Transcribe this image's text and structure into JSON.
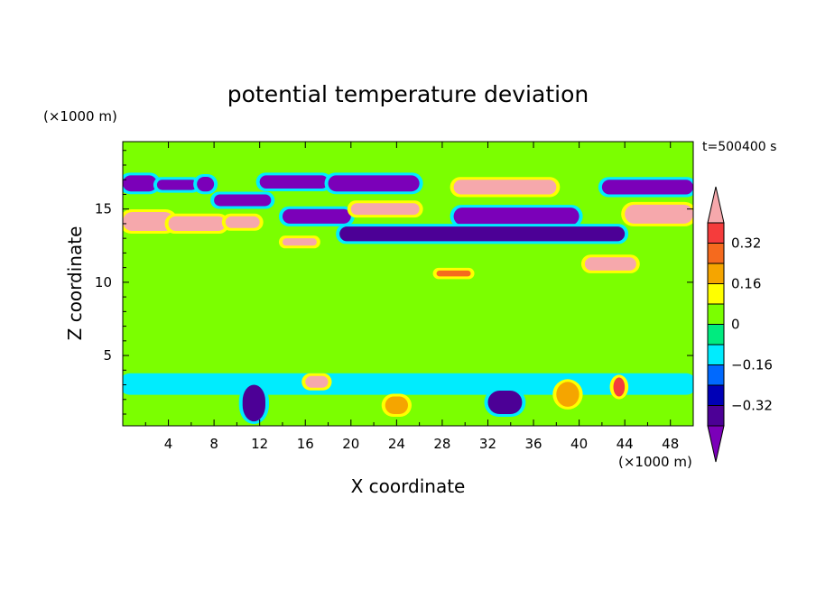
{
  "chart_data": {
    "type": "heatmap",
    "title": "potential temperature deviation",
    "xlabel": "X coordinate",
    "ylabel": "Z coordinate",
    "x_units": "(×1000 m)",
    "y_units": "(×1000 m)",
    "time_label": "t=500400 s",
    "xlim": [
      0,
      50
    ],
    "ylim": [
      0.2,
      19.6
    ],
    "x_ticks": [
      "4",
      "8",
      "12",
      "16",
      "20",
      "24",
      "28",
      "32",
      "36",
      "40",
      "44",
      "48"
    ],
    "y_ticks": [
      "5",
      "10",
      "15"
    ],
    "colorbar": {
      "labels": [
        "0.32",
        "0.16",
        "0",
        "−0.16",
        "−0.32"
      ],
      "levels": [
        0.4,
        0.32,
        0.24,
        0.16,
        0.08,
        0,
        -0.08,
        -0.16,
        -0.24,
        -0.32,
        -0.4
      ],
      "colors": [
        "#f6a8ac",
        "#f53c3c",
        "#f56a1e",
        "#f5a500",
        "#ffff00",
        "#7bff00",
        "#00eb7f",
        "#00ecfe",
        "#0069fe",
        "#0000b6",
        "#4c0096",
        "#7b00b9"
      ]
    },
    "background_color": "#7bff00",
    "features": [
      {
        "x": [
          0,
          3
        ],
        "z": [
          16.2,
          17.3
        ],
        "value": -0.45
      },
      {
        "x": [
          3,
          6.5
        ],
        "z": [
          16.3,
          17.0
        ],
        "value": -0.45
      },
      {
        "x": [
          6.5,
          8
        ],
        "z": [
          16.2,
          17.2
        ],
        "value": -0.45
      },
      {
        "x": [
          0,
          4.5
        ],
        "z": [
          13.5,
          14.8
        ],
        "value": 0.45
      },
      {
        "x": [
          4,
          9
        ],
        "z": [
          13.5,
          14.5
        ],
        "value": 0.45
      },
      {
        "x": [
          9,
          12
        ],
        "z": [
          13.7,
          14.5
        ],
        "value": 0.45
      },
      {
        "x": [
          8,
          13
        ],
        "z": [
          15.2,
          16.0
        ],
        "value": -0.45
      },
      {
        "x": [
          12,
          18
        ],
        "z": [
          16.4,
          17.3
        ],
        "value": -0.45
      },
      {
        "x": [
          14,
          20
        ],
        "z": [
          14.0,
          15.0
        ],
        "value": -0.45
      },
      {
        "x": [
          18,
          26
        ],
        "z": [
          16.2,
          17.3
        ],
        "value": -0.45
      },
      {
        "x": [
          20,
          26
        ],
        "z": [
          14.6,
          15.4
        ],
        "value": 0.45
      },
      {
        "x": [
          29,
          38
        ],
        "z": [
          16.0,
          17.0
        ],
        "value": 0.45
      },
      {
        "x": [
          29,
          40
        ],
        "z": [
          13.9,
          15.1
        ],
        "value": -0.45
      },
      {
        "x": [
          19,
          44
        ],
        "z": [
          12.8,
          13.8
        ],
        "value": -0.36
      },
      {
        "x": [
          42,
          50
        ],
        "z": [
          16.0,
          17.0
        ],
        "value": -0.45
      },
      {
        "x": [
          44,
          50
        ],
        "z": [
          14.0,
          15.3
        ],
        "value": 0.45
      },
      {
        "x": [
          40.5,
          45
        ],
        "z": [
          10.8,
          11.7
        ],
        "value": 0.4
      },
      {
        "x": [
          14,
          17
        ],
        "z": [
          12.5,
          13.0
        ],
        "value": 0.4
      },
      {
        "x": [
          27.5,
          30.5
        ],
        "z": [
          10.4,
          10.8
        ],
        "value": 0.24
      },
      {
        "x": [
          0,
          50
        ],
        "z": [
          2.5,
          3.6
        ],
        "value": -0.1
      },
      {
        "x": [
          10.5,
          12.5
        ],
        "z": [
          0.5,
          3.0
        ],
        "value": -0.36
      },
      {
        "x": [
          16,
          18
        ],
        "z": [
          2.8,
          3.6
        ],
        "value": 0.4
      },
      {
        "x": [
          23,
          25
        ],
        "z": [
          1.0,
          2.2
        ],
        "value": 0.2
      },
      {
        "x": [
          32,
          35
        ],
        "z": [
          1.0,
          2.6
        ],
        "value": -0.36
      },
      {
        "x": [
          38,
          40
        ],
        "z": [
          1.5,
          3.2
        ],
        "value": 0.2
      },
      {
        "x": [
          43,
          44
        ],
        "z": [
          2.2,
          3.5
        ],
        "value": 0.32
      }
    ]
  }
}
